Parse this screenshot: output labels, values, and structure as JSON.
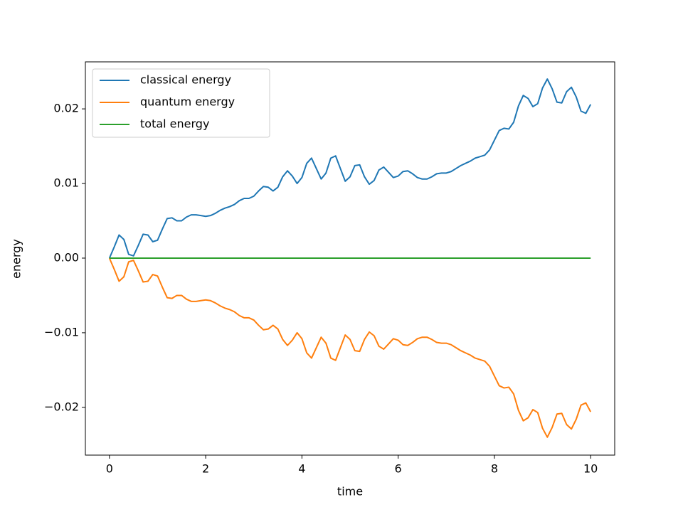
{
  "chart_data": {
    "type": "line",
    "xlabel": "time",
    "ylabel": "energy",
    "x": [
      0,
      0.1,
      0.2,
      0.3,
      0.4,
      0.5,
      0.6,
      0.7,
      0.8,
      0.9,
      1,
      1.1,
      1.2,
      1.3,
      1.4,
      1.5,
      1.6,
      1.7,
      1.8,
      1.9,
      2,
      2.1,
      2.2,
      2.3,
      2.4,
      2.5,
      2.6,
      2.7,
      2.8,
      2.9,
      3,
      3.1,
      3.2,
      3.3,
      3.4,
      3.5,
      3.6,
      3.7,
      3.8,
      3.9,
      4,
      4.1,
      4.2,
      4.3,
      4.4,
      4.5,
      4.6,
      4.7,
      4.8,
      4.9,
      5,
      5.1,
      5.2,
      5.3,
      5.4,
      5.5,
      5.6,
      5.7,
      5.8,
      5.9,
      6,
      6.1,
      6.2,
      6.3,
      6.4,
      6.5,
      6.6,
      6.7,
      6.8,
      6.9,
      7,
      7.1,
      7.2,
      7.3,
      7.4,
      7.5,
      7.6,
      7.7,
      7.8,
      7.9,
      8,
      8.1,
      8.2,
      8.3,
      8.4,
      8.5,
      8.6,
      8.7,
      8.8,
      8.9,
      9,
      9.1,
      9.2,
      9.3,
      9.4,
      9.5,
      9.6,
      9.7,
      9.8,
      9.9,
      10
    ],
    "series": [
      {
        "name": "classical energy",
        "color": "#1f77b4",
        "values": [
          0,
          0.0015,
          0.0031,
          0.0025,
          0.0005,
          0.0003,
          0.0017,
          0.0032,
          0.0031,
          0.0022,
          0.0024,
          0.0039,
          0.0053,
          0.0054,
          0.005,
          0.005,
          0.0055,
          0.0058,
          0.0058,
          0.0057,
          0.0056,
          0.0057,
          0.006,
          0.0064,
          0.0067,
          0.0069,
          0.0072,
          0.0077,
          0.008,
          0.008,
          0.0083,
          0.009,
          0.0096,
          0.0095,
          0.009,
          0.0095,
          0.0109,
          0.0117,
          0.011,
          0.01,
          0.0108,
          0.0127,
          0.0134,
          0.012,
          0.0106,
          0.0114,
          0.0134,
          0.0137,
          0.012,
          0.0103,
          0.0109,
          0.0124,
          0.0125,
          0.0109,
          0.0099,
          0.0104,
          0.0118,
          0.0122,
          0.0115,
          0.0108,
          0.011,
          0.0116,
          0.0117,
          0.0113,
          0.0108,
          0.0106,
          0.0106,
          0.0109,
          0.0113,
          0.0114,
          0.0114,
          0.0116,
          0.012,
          0.0124,
          0.0127,
          0.013,
          0.0134,
          0.0136,
          0.0138,
          0.0145,
          0.0158,
          0.0171,
          0.0174,
          0.0173,
          0.0182,
          0.0204,
          0.0218,
          0.0214,
          0.0203,
          0.0207,
          0.0228,
          0.024,
          0.0227,
          0.0209,
          0.0208,
          0.0223,
          0.0229,
          0.0216,
          0.0197,
          0.0194,
          0.0206
        ]
      },
      {
        "name": "quantum energy",
        "color": "#ff7f0e",
        "values": [
          0,
          -0.0015,
          -0.0031,
          -0.0025,
          -0.0005,
          -0.0003,
          -0.0017,
          -0.0032,
          -0.0031,
          -0.0022,
          -0.0024,
          -0.0039,
          -0.0053,
          -0.0054,
          -0.005,
          -0.005,
          -0.0055,
          -0.0058,
          -0.0058,
          -0.0057,
          -0.0056,
          -0.0057,
          -0.006,
          -0.0064,
          -0.0067,
          -0.0069,
          -0.0072,
          -0.0077,
          -0.008,
          -0.008,
          -0.0083,
          -0.009,
          -0.0096,
          -0.0095,
          -0.009,
          -0.0095,
          -0.0109,
          -0.0117,
          -0.011,
          -0.01,
          -0.0108,
          -0.0127,
          -0.0134,
          -0.012,
          -0.0106,
          -0.0114,
          -0.0134,
          -0.0137,
          -0.012,
          -0.0103,
          -0.0109,
          -0.0124,
          -0.0125,
          -0.0109,
          -0.0099,
          -0.0104,
          -0.0118,
          -0.0122,
          -0.0115,
          -0.0108,
          -0.011,
          -0.0116,
          -0.0117,
          -0.0113,
          -0.0108,
          -0.0106,
          -0.0106,
          -0.0109,
          -0.0113,
          -0.0114,
          -0.0114,
          -0.0116,
          -0.012,
          -0.0124,
          -0.0127,
          -0.013,
          -0.0134,
          -0.0136,
          -0.0138,
          -0.0145,
          -0.0158,
          -0.0171,
          -0.0174,
          -0.0173,
          -0.0182,
          -0.0204,
          -0.0218,
          -0.0214,
          -0.0203,
          -0.0207,
          -0.0228,
          -0.024,
          -0.0227,
          -0.0209,
          -0.0208,
          -0.0223,
          -0.0229,
          -0.0216,
          -0.0197,
          -0.0194,
          -0.0206
        ]
      },
      {
        "name": "total energy",
        "color": "#2ca02c",
        "values": [
          0,
          0,
          0,
          0,
          0,
          0,
          0,
          0,
          0,
          0,
          0,
          0,
          0,
          0,
          0,
          0,
          0,
          0,
          0,
          0,
          0,
          0,
          0,
          0,
          0,
          0,
          0,
          0,
          0,
          0,
          0,
          0,
          0,
          0,
          0,
          0,
          0,
          0,
          0,
          0,
          0,
          0,
          0,
          0,
          0,
          0,
          0,
          0,
          0,
          0,
          0,
          0,
          0,
          0,
          0,
          0,
          0,
          0,
          0,
          0,
          0,
          0,
          0,
          0,
          0,
          0,
          0,
          0,
          0,
          0,
          0,
          0,
          0,
          0,
          0,
          0,
          0,
          0,
          0,
          0,
          0,
          0,
          0,
          0,
          0,
          0,
          0,
          0,
          0,
          0,
          0,
          0,
          0,
          0,
          0,
          0,
          0,
          0,
          0,
          0,
          0
        ]
      }
    ],
    "xlim": [
      -0.5,
      10.5
    ],
    "ylim": [
      -0.0264,
      0.0263
    ],
    "xticks": [
      0,
      2,
      4,
      6,
      8,
      10
    ],
    "yticks": [
      {
        "value": -0.02,
        "label": "−0.02"
      },
      {
        "value": -0.01,
        "label": "−0.01"
      },
      {
        "value": 0,
        "label": "0.00"
      },
      {
        "value": 0.01,
        "label": "0.01"
      },
      {
        "value": 0.02,
        "label": "0.02"
      }
    ],
    "legend": "upper left",
    "grid": false
  }
}
